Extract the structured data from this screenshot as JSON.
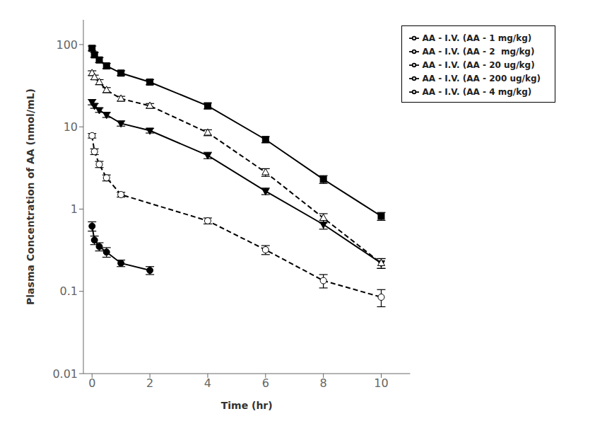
{
  "chart_data": {
    "type": "line",
    "title": "",
    "xlabel": "Time (hr)",
    "ylabel": "Plasma Concentration of AA (nmol/mL)",
    "xlim": [
      -0.3,
      11
    ],
    "xticks": [
      0,
      2,
      4,
      6,
      8,
      10
    ],
    "ylim": [
      0.01,
      200
    ],
    "yticks": [
      0.01,
      0.1,
      1,
      10,
      100
    ],
    "log": "y",
    "grid": false,
    "legend": "upper right",
    "series": [
      {
        "name": "AA - I.V. (AA - 20 ug/kg)",
        "color": "black",
        "line_style": "solid",
        "marker": "circle",
        "x": [
          0,
          0.083,
          0.25,
          0.5,
          1,
          2
        ],
        "values": [
          0.62,
          0.42,
          0.35,
          0.3,
          0.22,
          0.18
        ],
        "yerr": [
          0.08,
          0.05,
          0.04,
          0.04,
          0.02,
          0.02
        ]
      },
      {
        "name": "AA - I.V. (AA - 200 ug/kg)",
        "color": "black",
        "line_style": "dashed",
        "marker": "circle_open",
        "x": [
          0,
          0.083,
          0.25,
          0.5,
          1,
          4,
          6,
          8,
          10
        ],
        "values": [
          7.8,
          5.0,
          3.5,
          2.4,
          1.5,
          0.72,
          0.32,
          0.135,
          0.085
        ],
        "yerr": [
          0.5,
          0.4,
          0.3,
          0.2,
          0.1,
          0.06,
          0.04,
          0.025,
          0.02
        ]
      },
      {
        "name": "AA - I.V. (AA - 1 mg/kg)",
        "color": "black",
        "line_style": "solid",
        "marker": "triangle_down",
        "x": [
          0,
          0.083,
          0.25,
          0.5,
          1,
          2,
          4,
          6,
          8,
          10
        ],
        "values": [
          20.0,
          18.0,
          16.0,
          14.0,
          11.0,
          9.0,
          4.5,
          1.65,
          0.65,
          0.22
        ],
        "yerr": [
          1.5,
          1.2,
          1.0,
          1.0,
          0.8,
          0.6,
          0.4,
          0.15,
          0.08,
          0.03
        ]
      },
      {
        "name": "AA - I.V. (AA - 2  mg/kg)",
        "color": "black",
        "line_style": "dashed",
        "marker": "triangle_up_open",
        "x": [
          0,
          0.083,
          0.25,
          0.5,
          1,
          2,
          4,
          6,
          8,
          10
        ],
        "values": [
          45.0,
          40.0,
          35.0,
          28.0,
          22.0,
          18.0,
          8.5,
          2.8,
          0.78,
          0.22
        ],
        "yerr": [
          3.0,
          2.5,
          2.5,
          2.0,
          1.5,
          1.2,
          0.7,
          0.3,
          0.1,
          0.03
        ]
      },
      {
        "name": "AA - I.V. (AA - 4 mg/kg)",
        "color": "black",
        "line_style": "solid",
        "marker": "square",
        "x": [
          0,
          0.083,
          0.25,
          0.5,
          1,
          2,
          4,
          6,
          8,
          10
        ],
        "values": [
          90.0,
          75.0,
          65.0,
          55.0,
          45.0,
          35.0,
          18.0,
          7.0,
          2.3,
          0.82
        ],
        "yerr": [
          6.0,
          5.0,
          4.5,
          4.0,
          3.0,
          2.5,
          1.5,
          0.6,
          0.25,
          0.09
        ]
      }
    ]
  }
}
